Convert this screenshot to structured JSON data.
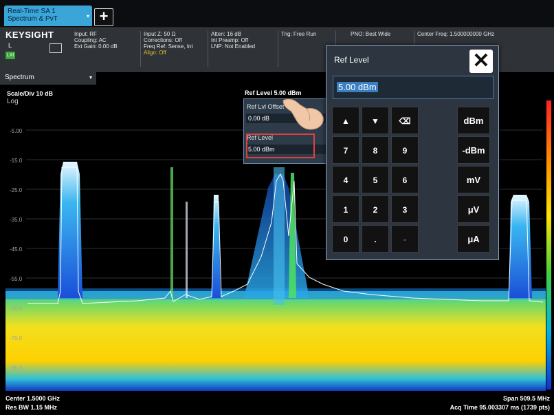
{
  "tab": {
    "line1": "Real-Time SA 1",
    "line2": "Spectrum & PvT",
    "dropdown_glyph": "▾",
    "add_glyph": "+"
  },
  "info": {
    "brand": "KEYSIGHT",
    "local": "L",
    "lxi": "LXI",
    "col1": [
      "Input: RF",
      "Coupling: AC",
      "Ext Gain: 0.00 dB"
    ],
    "col2": [
      "Input Z: 50 Ω",
      "Corrections: Off",
      "Freq Ref: Sense, Int"
    ],
    "col2_align": "Align: Off",
    "col3": [
      "Atten: 16 dB",
      "Int Preamp: Off",
      "LNP: Not Enabled"
    ],
    "trig": "Trig: Free Run",
    "pno": "PNO: Best Wide",
    "center": "Center Freq: 1.500000000 GHz"
  },
  "view": {
    "title": "Spectrum"
  },
  "plot": {
    "scale": "Scale/Div 10 dB",
    "log": "Log",
    "ref_label": "Ref Level 5.00 dBm",
    "y_labels": [
      "-5.00",
      "-15.0",
      "-25.0",
      "-35.0",
      "-45.0",
      "-55.0",
      "-65.0",
      "-75.0",
      "-85.0"
    ]
  },
  "ref_panel": {
    "offset_label": "Ref Lvl Offset",
    "offset_value": "0.00 dB",
    "level_label": "Ref Level",
    "level_value": "5.00 dBm"
  },
  "dialog": {
    "title": "Ref Level",
    "close_glyph": "✕",
    "entry": "5.00 dBm",
    "keys": {
      "up": "▲",
      "down": "▼",
      "back": "⌫",
      "n7": "7",
      "n8": "8",
      "n9": "9",
      "n4": "4",
      "n5": "5",
      "n6": "6",
      "n1": "1",
      "n2": "2",
      "n3": "3",
      "n0": "0",
      "dot": ".",
      "minus": "-"
    },
    "units": [
      "dBm",
      "-dBm",
      "mV",
      "μV",
      "μA"
    ]
  },
  "status": {
    "center": "Center 1.5000 GHz",
    "res_bw": "Res BW 1.15 MHz",
    "span": "Span 509.5 MHz",
    "acq": "Acq Time 95.003307 ms (1739 pts)"
  },
  "colors": {
    "accent": "#3aa6d8",
    "align_warn": "#e0c020",
    "highlight": "#e04040"
  }
}
